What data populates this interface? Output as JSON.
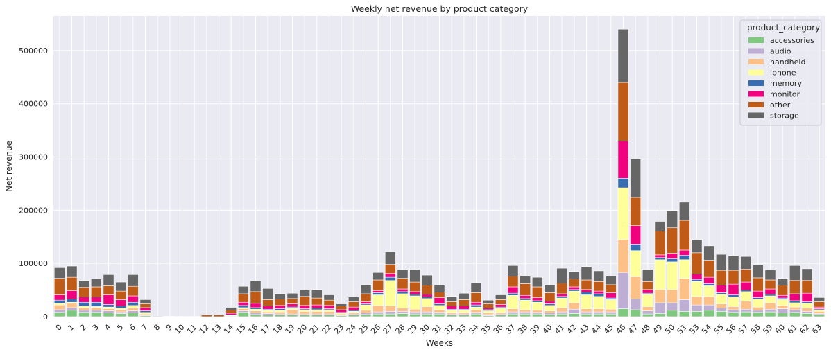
{
  "chart_data": {
    "type": "bar",
    "stacked": true,
    "title": "Weekly net revenue by product category",
    "xlabel": "Weeks",
    "ylabel": "Net revenue",
    "ylim": [
      0,
      565000
    ],
    "yticks": [
      0,
      100000,
      200000,
      300000,
      400000,
      500000
    ],
    "grid": true,
    "legend": {
      "title": "product_category",
      "placement": "top-right"
    },
    "categories": [
      "0",
      "1",
      "2",
      "3",
      "4",
      "5",
      "6",
      "7",
      "8",
      "9",
      "10",
      "11",
      "12",
      "13",
      "14",
      "15",
      "16",
      "17",
      "18",
      "19",
      "20",
      "21",
      "22",
      "23",
      "24",
      "25",
      "26",
      "27",
      "28",
      "29",
      "30",
      "31",
      "32",
      "33",
      "34",
      "35",
      "36",
      "37",
      "38",
      "39",
      "40",
      "41",
      "42",
      "43",
      "44",
      "45",
      "46",
      "47",
      "48",
      "49",
      "50",
      "51",
      "53",
      "54",
      "55",
      "56",
      "57",
      "58",
      "59",
      "60",
      "61",
      "62",
      "63"
    ],
    "series": [
      {
        "name": "accessories",
        "color": "#7fc97f",
        "values": [
          8000,
          12000,
          8000,
          8000,
          7000,
          6000,
          7000,
          2000,
          0,
          0,
          0,
          0,
          0,
          0,
          1000,
          8000,
          4000,
          3000,
          3000,
          3000,
          3000,
          3000,
          3000,
          2000,
          3000,
          4000,
          5000,
          5000,
          6000,
          5000,
          5000,
          5000,
          3000,
          3000,
          5000,
          2000,
          3000,
          5000,
          5000,
          5000,
          4000,
          5000,
          6000,
          5000,
          5000,
          5000,
          15000,
          13000,
          5000,
          6000,
          12000,
          10000,
          10000,
          12000,
          10000,
          8000,
          9000,
          8000,
          9000,
          7000,
          8000,
          6000,
          4000
        ]
      },
      {
        "name": "audio",
        "color": "#beaed4",
        "values": [
          5000,
          5000,
          4000,
          4000,
          4000,
          3000,
          4000,
          1000,
          0,
          0,
          0,
          0,
          0,
          0,
          500,
          3000,
          3000,
          3000,
          2000,
          2000,
          2000,
          2000,
          2000,
          1000,
          2000,
          3000,
          4000,
          5000,
          4000,
          4000,
          4000,
          3000,
          2000,
          2000,
          3000,
          2000,
          2000,
          4000,
          4000,
          3000,
          3000,
          4000,
          8000,
          4000,
          4000,
          4000,
          68000,
          20000,
          6000,
          20000,
          14000,
          22000,
          12000,
          10000,
          6000,
          5000,
          5000,
          4000,
          5000,
          8000,
          5000,
          4000,
          2000
        ]
      },
      {
        "name": "handheld",
        "color": "#fdc086",
        "values": [
          9000,
          8000,
          5000,
          5000,
          4000,
          4000,
          5000,
          2000,
          0,
          0,
          0,
          0,
          0,
          0,
          1000,
          4000,
          4000,
          3000,
          4000,
          8000,
          5000,
          5000,
          5000,
          2000,
          3000,
          5000,
          12000,
          10000,
          6000,
          5000,
          10000,
          5000,
          3000,
          3000,
          5000,
          3000,
          3000,
          6000,
          4000,
          4000,
          4000,
          8000,
          12000,
          6000,
          6000,
          5000,
          62000,
          42000,
          8000,
          25000,
          25000,
          40000,
          16000,
          16000,
          8000,
          6000,
          15000,
          6000,
          12000,
          6000,
          5000,
          6000,
          4000
        ]
      },
      {
        "name": "iphone",
        "color": "#ffff99",
        "values": [
          3000,
          2000,
          3000,
          2000,
          3000,
          3000,
          5000,
          3000,
          0,
          0,
          0,
          0,
          0,
          0,
          500,
          2000,
          3000,
          3000,
          3000,
          3000,
          3000,
          3000,
          3000,
          2000,
          2000,
          10000,
          20000,
          48000,
          27000,
          25000,
          15000,
          8000,
          4000,
          4000,
          5000,
          4000,
          8000,
          25000,
          18000,
          15000,
          10000,
          18000,
          22000,
          26000,
          23000,
          18000,
          97000,
          49000,
          23000,
          56000,
          52000,
          35000,
          28000,
          20000,
          18000,
          18000,
          18000,
          15000,
          13000,
          11000,
          8000,
          9000,
          3000
        ]
      },
      {
        "name": "memory",
        "color": "#386cb0",
        "values": [
          6000,
          6000,
          7000,
          8000,
          5000,
          4000,
          6000,
          3000,
          0,
          0,
          0,
          0,
          0,
          0,
          500,
          4000,
          3000,
          2000,
          3000,
          2000,
          2000,
          3000,
          2000,
          1000,
          2000,
          2000,
          4000,
          6000,
          4000,
          3000,
          3000,
          3000,
          2000,
          2000,
          4000,
          2000,
          2000,
          4000,
          3000,
          3000,
          3000,
          3000,
          3000,
          5000,
          5000,
          3000,
          18000,
          12000,
          2000,
          4000,
          6000,
          8000,
          4000,
          4000,
          3000,
          4000,
          3000,
          3000,
          3000,
          3000,
          4000,
          3000,
          2000
        ]
      },
      {
        "name": "monitor",
        "color": "#f0027f",
        "values": [
          10000,
          16000,
          10000,
          10000,
          18000,
          12000,
          12000,
          6000,
          0,
          0,
          0,
          0,
          0,
          0,
          3000,
          6000,
          8000,
          6000,
          6000,
          6000,
          6000,
          6000,
          6000,
          5000,
          6000,
          4000,
          4000,
          7000,
          5000,
          5000,
          5000,
          12000,
          6000,
          6000,
          5000,
          3000,
          5000,
          12000,
          6000,
          6000,
          5000,
          5000,
          5000,
          5000,
          5000,
          10000,
          70000,
          35000,
          7000,
          5000,
          10000,
          10000,
          10000,
          12000,
          14000,
          20000,
          15000,
          12000,
          10000,
          5000,
          13000,
          16000,
          3000
        ]
      },
      {
        "name": "other",
        "color": "#bf5b17",
        "values": [
          31000,
          25000,
          18000,
          19000,
          17000,
          16000,
          18000,
          7000,
          0,
          500,
          0,
          0,
          3000,
          3000,
          6000,
          16000,
          22000,
          12000,
          12000,
          10000,
          17000,
          13000,
          10000,
          7000,
          10000,
          15000,
          20000,
          17000,
          20000,
          18000,
          17000,
          10000,
          8000,
          12000,
          18000,
          8000,
          9000,
          20000,
          22000,
          20000,
          16000,
          20000,
          15000,
          18000,
          18000,
          15000,
          110000,
          53000,
          15000,
          45000,
          48000,
          56000,
          40000,
          32000,
          28000,
          26000,
          24000,
          25000,
          17000,
          19000,
          25000,
          24000,
          10000
        ]
      },
      {
        "name": "storage",
        "color": "#666666",
        "values": [
          20000,
          21000,
          13000,
          15000,
          21000,
          17000,
          22000,
          8000,
          1000,
          500,
          500,
          500,
          0,
          500,
          5000,
          14000,
          20000,
          21000,
          10000,
          10000,
          12000,
          16000,
          10000,
          4000,
          9000,
          17000,
          14000,
          24000,
          17000,
          24000,
          19000,
          13000,
          10000,
          12000,
          19000,
          7000,
          9000,
          20000,
          14000,
          18000,
          14000,
          28000,
          14000,
          25000,
          20000,
          16000,
          100000,
          72000,
          23000,
          18000,
          32000,
          34000,
          25000,
          27000,
          30000,
          28000,
          24000,
          24000,
          19000,
          13000,
          28000,
          22000,
          8000
        ]
      }
    ]
  }
}
